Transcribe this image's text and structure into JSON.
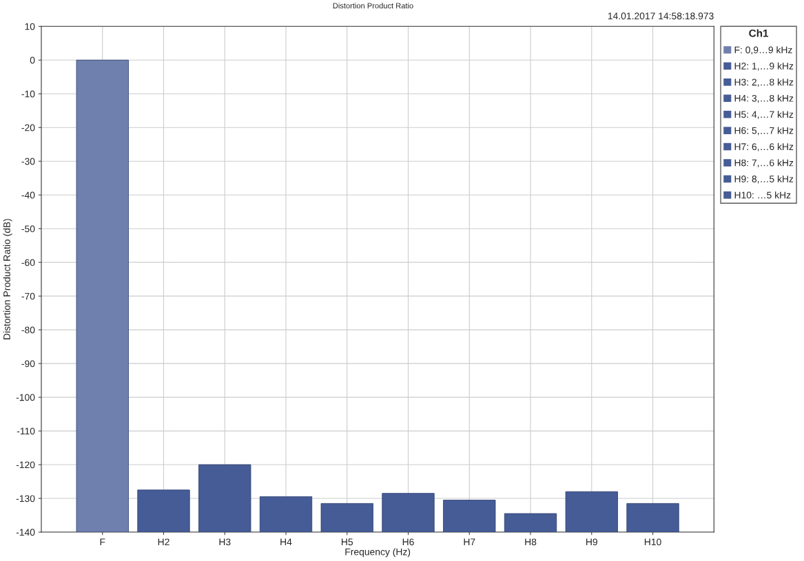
{
  "chart_data": {
    "type": "bar",
    "title": "Distortion Product Ratio",
    "xlabel": "Frequency (Hz)",
    "ylabel": "Distortion Product Ratio (dB)",
    "categories": [
      "F",
      "H2",
      "H3",
      "H4",
      "H5",
      "H6",
      "H7",
      "H8",
      "H9",
      "H10"
    ],
    "series": [
      {
        "name": "F: 0,9…9 kHz",
        "color": "#7080ae",
        "base": [
          -140,
          null,
          null,
          null,
          null,
          null,
          null,
          null,
          null,
          null
        ],
        "values": [
          140,
          null,
          null,
          null,
          null,
          null,
          null,
          null,
          null,
          null
        ]
      },
      {
        "name": "H2: 1,…9 kHz",
        "color": "#465c96",
        "base": [
          null,
          -140,
          null,
          null,
          null,
          null,
          null,
          null,
          null,
          null
        ],
        "values": [
          null,
          12.5,
          null,
          null,
          null,
          null,
          null,
          null,
          null,
          null
        ]
      },
      {
        "name": "H3: 2,…8 kHz",
        "color": "#465c96",
        "base": [
          null,
          null,
          -140,
          null,
          null,
          null,
          null,
          null,
          null,
          null
        ],
        "values": [
          null,
          null,
          20,
          null,
          null,
          null,
          null,
          null,
          null,
          null
        ]
      },
      {
        "name": "H4: 3,…8 kHz",
        "color": "#465c96",
        "base": [
          null,
          null,
          null,
          -140,
          null,
          null,
          null,
          null,
          null,
          null
        ],
        "values": [
          null,
          null,
          null,
          10.5,
          null,
          null,
          null,
          null,
          null,
          null
        ]
      },
      {
        "name": "H5: 4,…7 kHz",
        "color": "#465c96",
        "base": [
          null,
          null,
          null,
          null,
          -140,
          null,
          null,
          null,
          null,
          null
        ],
        "values": [
          null,
          null,
          null,
          null,
          8.5,
          null,
          null,
          null,
          null,
          null
        ]
      },
      {
        "name": "H6: 5,…7 kHz",
        "color": "#465c96",
        "base": [
          null,
          null,
          null,
          null,
          null,
          -140,
          null,
          null,
          null,
          null
        ],
        "values": [
          null,
          null,
          null,
          null,
          null,
          11.5,
          null,
          null,
          null,
          null
        ]
      },
      {
        "name": "H7: 6,…6 kHz",
        "color": "#465c96",
        "base": [
          null,
          null,
          null,
          null,
          null,
          null,
          -140,
          null,
          null,
          null
        ],
        "values": [
          null,
          null,
          null,
          null,
          null,
          null,
          9.5,
          null,
          null,
          null
        ]
      },
      {
        "name": "H8: 7,…6 kHz",
        "color": "#465c96",
        "base": [
          null,
          null,
          null,
          null,
          null,
          null,
          null,
          -140,
          null,
          null
        ],
        "values": [
          null,
          null,
          null,
          null,
          null,
          null,
          null,
          5.5,
          null,
          null
        ]
      },
      {
        "name": "H9: 8,…5 kHz",
        "color": "#465c96",
        "base": [
          null,
          null,
          null,
          null,
          null,
          null,
          null,
          null,
          -140,
          null
        ],
        "values": [
          null,
          null,
          null,
          null,
          null,
          null,
          null,
          null,
          12,
          null
        ]
      },
      {
        "name": "H10: …5 kHz",
        "color": "#465c96",
        "base": [
          null,
          null,
          null,
          null,
          null,
          null,
          null,
          null,
          null,
          -140
        ],
        "values": [
          null,
          null,
          null,
          null,
          null,
          null,
          null,
          null,
          null,
          8.5
        ]
      }
    ],
    "legend_title": "Ch1",
    "legend": "right",
    "ylim": [
      -140,
      10
    ],
    "yticks": [
      10,
      0,
      -10,
      -20,
      -30,
      -40,
      -50,
      -60,
      -70,
      -80,
      -90,
      -100,
      -110,
      -120,
      -130,
      -140
    ],
    "grid": true,
    "annotations": [
      "14.01.2017 14:58:18.973"
    ]
  }
}
